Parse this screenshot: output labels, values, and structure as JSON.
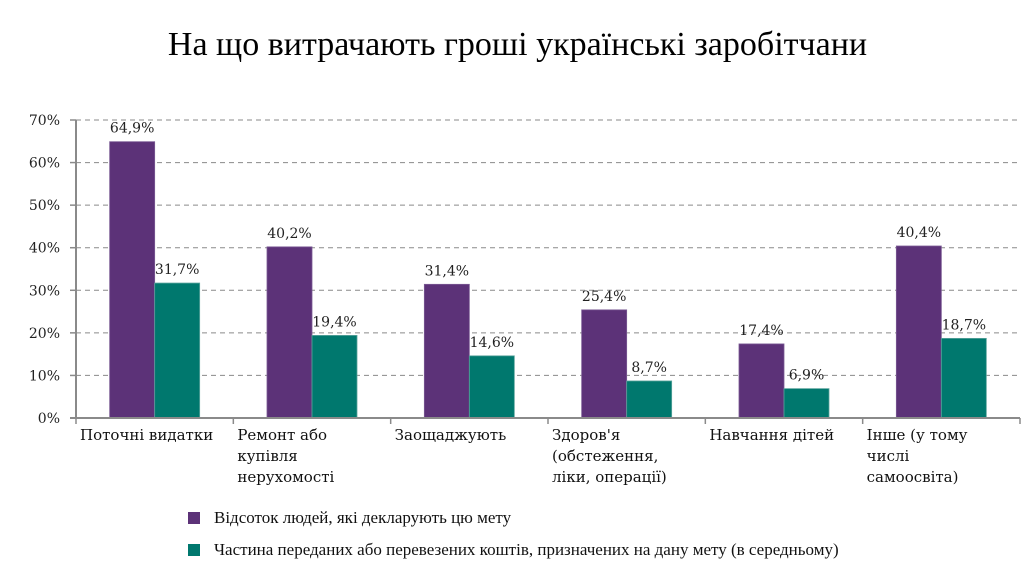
{
  "chart_data": {
    "type": "bar",
    "title": "На що витрачають гроші українські заробітчани",
    "xlabel": "",
    "ylabel": "",
    "ylim": [
      0,
      70
    ],
    "yticks": [
      "0%",
      "10%",
      "20%",
      "30%",
      "40%",
      "50%",
      "60%",
      "70%"
    ],
    "ytick_values": [
      0,
      10,
      20,
      30,
      40,
      50,
      60,
      70
    ],
    "grid": true,
    "legend_position": "bottom",
    "categories": [
      "Поточні видатки",
      "Ремонт або купівля нерухомості",
      "Заощаджують",
      "Здоров'я (обстеження, ліки, операції)",
      "Навчання дітей",
      "Інше (у тому числі самоосвіта)"
    ],
    "category_lines": [
      [
        "Поточні видатки"
      ],
      [
        "Ремонт або",
        "купівля",
        "нерухомості"
      ],
      [
        "Заощаджують"
      ],
      [
        "Здоров'я",
        "(обстеження,",
        "ліки, операції)"
      ],
      [
        "Навчання дітей"
      ],
      [
        "Інше (у тому",
        "числі",
        "самоосвіта)"
      ]
    ],
    "series": [
      {
        "name": "Відсоток людей, які декларують цю мету",
        "color": "#5c3278",
        "values": [
          64.9,
          40.2,
          31.4,
          25.4,
          17.4,
          40.4
        ],
        "labels": [
          "64,9%",
          "40,2%",
          "31,4%",
          "25,4%",
          "17,4%",
          "40,4%"
        ]
      },
      {
        "name": "Частина переданих або перевезених коштів, призначених на дану мету (в середньому)",
        "color": "#00786e",
        "values": [
          31.7,
          19.4,
          14.6,
          8.7,
          6.9,
          18.7
        ],
        "labels": [
          "31,7%",
          "19,4%",
          "14,6%",
          "8,7%",
          "6,9%",
          "18,7%"
        ]
      }
    ]
  }
}
